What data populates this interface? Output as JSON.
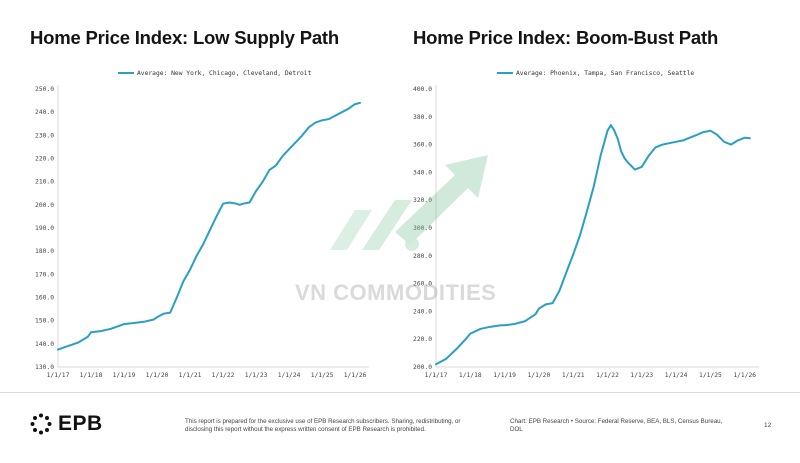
{
  "chart_data": [
    {
      "type": "line",
      "title": "Home Price Index: Low Supply Path",
      "legend": "Average: New York, Chicago, Cleveland, Detroit",
      "legend_position": "top-center",
      "color": "#2a9fc4",
      "ylim": [
        130,
        250
      ],
      "yticks": [
        "250.0",
        "240.0",
        "230.0",
        "220.0",
        "210.0",
        "200.0",
        "190.0",
        "180.0",
        "170.0",
        "160.0",
        "150.0",
        "140.0",
        "130.0"
      ],
      "xlim": [
        2017,
        2026.3
      ],
      "xticks": [
        "1/1/17",
        "1/1/18",
        "1/1/19",
        "1/1/20",
        "1/1/21",
        "1/1/22",
        "1/1/23",
        "1/1/24",
        "1/1/25",
        "1/1/26"
      ],
      "x": [
        2017.0,
        2017.3,
        2017.6,
        2017.9,
        2018.0,
        2018.3,
        2018.6,
        2018.9,
        2019.0,
        2019.3,
        2019.6,
        2019.9,
        2020.0,
        2020.2,
        2020.4,
        2020.6,
        2020.8,
        2021.0,
        2021.2,
        2021.4,
        2021.6,
        2021.8,
        2022.0,
        2022.2,
        2022.4,
        2022.5,
        2022.6,
        2022.8,
        2023.0,
        2023.2,
        2023.4,
        2023.6,
        2023.8,
        2024.0,
        2024.2,
        2024.4,
        2024.6,
        2024.8,
        2025.0,
        2025.2,
        2025.4,
        2025.6,
        2025.8,
        2026.0,
        2026.15
      ],
      "y": [
        137.5,
        139.0,
        140.5,
        143.0,
        145.0,
        145.5,
        146.5,
        148.0,
        148.5,
        149.0,
        149.5,
        150.5,
        151.5,
        153.0,
        153.5,
        160.0,
        167.0,
        172.0,
        178.0,
        183.0,
        189.0,
        195.0,
        200.5,
        201.0,
        200.5,
        200.0,
        200.5,
        201.0,
        206.0,
        210.0,
        215.0,
        217.0,
        221.0,
        224.0,
        227.0,
        230.0,
        233.5,
        235.5,
        236.5,
        237.0,
        238.5,
        240.0,
        241.5,
        243.5,
        244.0
      ]
    },
    {
      "type": "line",
      "title": "Home Price Index: Boom-Bust Path",
      "legend": "Average: Phoenix, Tampa, San Francisco, Seattle",
      "legend_position": "top-center",
      "color": "#2a9fc4",
      "ylim": [
        200,
        400
      ],
      "yticks": [
        "400.0",
        "380.0",
        "360.0",
        "340.0",
        "320.0",
        "300.0",
        "280.0",
        "260.0",
        "240.0",
        "220.0",
        "200.0"
      ],
      "xlim": [
        2017,
        2026.3
      ],
      "xticks": [
        "1/1/17",
        "1/1/18",
        "1/1/19",
        "1/1/20",
        "1/1/21",
        "1/1/22",
        "1/1/23",
        "1/1/24",
        "1/1/25",
        "1/1/26"
      ],
      "x": [
        2017.0,
        2017.3,
        2017.6,
        2017.9,
        2018.0,
        2018.3,
        2018.6,
        2018.9,
        2019.0,
        2019.3,
        2019.6,
        2019.9,
        2020.0,
        2020.2,
        2020.4,
        2020.6,
        2020.8,
        2021.0,
        2021.2,
        2021.4,
        2021.6,
        2021.8,
        2022.0,
        2022.1,
        2022.2,
        2022.3,
        2022.4,
        2022.5,
        2022.6,
        2022.8,
        2023.0,
        2023.2,
        2023.4,
        2023.6,
        2023.8,
        2024.0,
        2024.2,
        2024.4,
        2024.6,
        2024.8,
        2025.0,
        2025.2,
        2025.4,
        2025.6,
        2025.8,
        2026.0,
        2026.15
      ],
      "y": [
        202.0,
        206.0,
        213.0,
        221.0,
        224.0,
        227.5,
        229.0,
        230.0,
        230.0,
        231.0,
        233.0,
        238.0,
        242.0,
        245.0,
        246.0,
        255.0,
        268.0,
        281.0,
        295.0,
        312.0,
        330.0,
        352.0,
        370.0,
        374.0,
        370.0,
        364.0,
        355.0,
        350.0,
        347.0,
        342.0,
        344.0,
        352.0,
        358.0,
        360.0,
        361.0,
        362.0,
        363.0,
        365.0,
        367.0,
        369.0,
        370.0,
        367.0,
        362.0,
        360.0,
        363.0,
        365.0,
        364.5
      ]
    }
  ],
  "watermark": {
    "text": "VN COMMODITIES"
  },
  "footer": {
    "logo": "EPB",
    "note": "This report is prepared for the exclusive use of EPB Research subscribers. Sharing, redistributing, or disclosing this report without the express written consent of EPB Research is prohibited.",
    "source": "Chart: EPB Research • Source: Federal Reserve, BEA, BLS, Census Bureau, DOL",
    "page": "12"
  }
}
